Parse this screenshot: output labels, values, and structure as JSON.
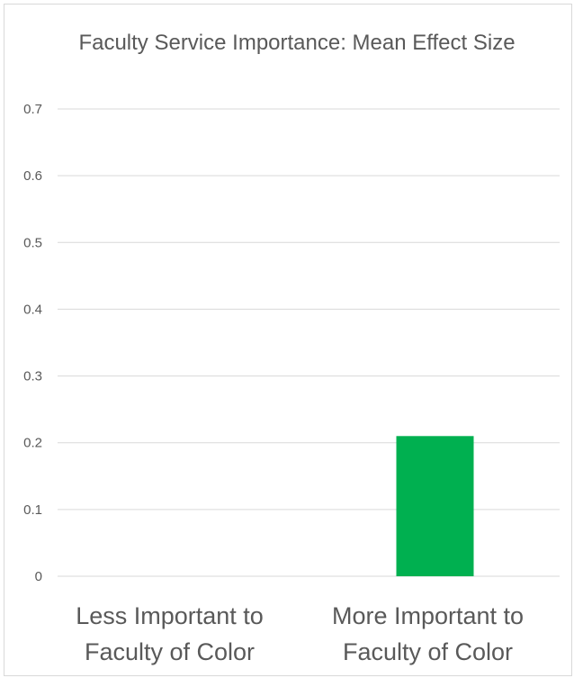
{
  "chart_data": {
    "type": "bar",
    "title": "Faculty Service Importance: Mean Effect Size",
    "categories": [
      [
        "Less Important to",
        "Faculty of Color"
      ],
      [
        "More Important to",
        "Faculty of Color"
      ]
    ],
    "values": [
      0,
      0.21
    ],
    "ylim": [
      0,
      0.7
    ],
    "yticks": [
      0,
      0.1,
      0.2,
      0.3,
      0.4,
      0.5,
      0.6,
      0.7
    ],
    "xlabel": "",
    "ylabel": "",
    "grid": true,
    "legend": "none",
    "bar_color": "#00b050",
    "gridline_color": "#d9d9d9",
    "text_color": "#595959"
  }
}
